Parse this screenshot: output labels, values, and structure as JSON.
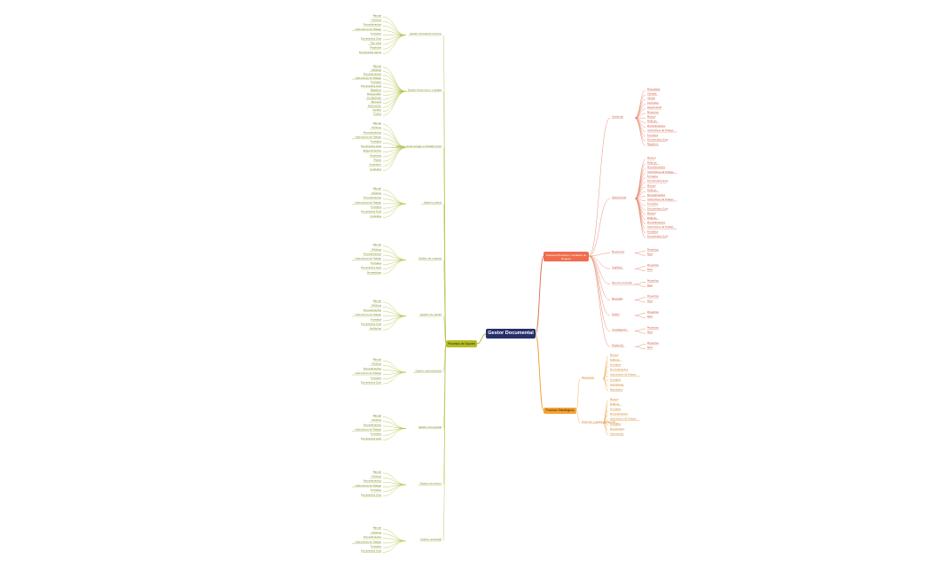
{
  "root": {
    "label": "Gestor Documental"
  },
  "branches": {
    "operativos": {
      "label": "Procesos de Soporte",
      "color": "#b4bc24",
      "subs": [
        {
          "label": "Gestión del talento humano",
          "items": [
            "Manual",
            "Políticas",
            "Procedimientos",
            "Instructivos de Trabajo",
            "Formatos",
            "Documentos Guía",
            "Tipo Lista",
            "Proyectos",
            "Documentos Varios"
          ]
        },
        {
          "label": "Gestión financiera y contable",
          "items": [
            "Manual",
            "Políticas",
            "Procedimientos",
            "Instructivos de Trabajo",
            "Formatos",
            "Documentos Guía",
            "Registros",
            "Presupuesto",
            "Contabilidad",
            "Tesorería",
            "Facturación",
            "Cartera",
            "Costos"
          ]
        },
        {
          "label": "Gestión de tecnología e infraestructura",
          "items": [
            "Manual",
            "Políticas",
            "Procedimientos",
            "Instructivos de Trabajo",
            "Formatos",
            "Documentos Guía",
            "Requerimientos",
            "Proyectos",
            "Planes",
            "Inventario",
            "Contratos"
          ]
        },
        {
          "label": "Gestión jurídica",
          "items": [
            "Manual",
            "Políticas",
            "Procedimientos",
            "Instructivos de Trabajo",
            "Formatos",
            "Documentos Guía",
            "Contratos"
          ]
        },
        {
          "label": "Gestión de compras",
          "items": [
            "Manual",
            "Políticas",
            "Procedimientos",
            "Instructivos de Trabajo",
            "Formatos",
            "Documentos Guía",
            "Proveedores"
          ]
        },
        {
          "label": "Gestión de calidad",
          "items": [
            "Manual",
            "Políticas",
            "Procedimientos",
            "Instructivos de Trabajo",
            "Formatos",
            "Documentos Guía",
            "Auditorías"
          ]
        },
        {
          "label": "Gestión administrativa",
          "items": [
            "Manual",
            "Políticas",
            "Procedimientos",
            "Instructivos de Trabajo",
            "Formatos",
            "Documentos Guía"
          ]
        },
        {
          "label": "Gestión documental",
          "items": [
            "Manual",
            "Políticas",
            "Procedimientos",
            "Instructivos de Trabajo",
            "Formatos",
            "Documentos Guía"
          ]
        },
        {
          "label": "Gestión de archivo",
          "items": [
            "Manual",
            "Políticas",
            "Procedimientos",
            "Instructivos de Trabajo",
            "Formatos",
            "Documentos Guía"
          ]
        },
        {
          "label": "Gestión ambiental",
          "items": [
            "Manual",
            "Políticas",
            "Procedimientos",
            "Instructivos de Trabajo",
            "Formatos",
            "Documentos Guía"
          ]
        }
      ]
    },
    "primarios": {
      "label": "Procesos Primarios / Unidades de Negocio",
      "color": "#ef6d4d",
      "subs": [
        {
          "label": "Comercial",
          "items": [
            "Propuestas",
            "Clientes",
            "Ventas",
            "Contratos",
            "Seguimiento",
            "Proyectos",
            "Manual",
            "Políticas",
            "Procedimientos",
            "Instructivos de Trabajo",
            "Formatos",
            "Documentos Guía",
            "Registros"
          ]
        },
        {
          "label": "Operaciones",
          "items": [
            "Manual",
            "Políticas",
            "Procedimientos",
            "Instructivos de Trabajo",
            "Formatos",
            "Documentos Guía",
            "Manual",
            "Políticas",
            "Procedimientos",
            "Instructivos de Trabajo",
            "Formatos",
            "Documentos Guía",
            "Manual",
            "Políticas",
            "Procedimientos",
            "Instructivos de Trabajo",
            "Formatos",
            "Documentos Guía"
          ]
        },
        {
          "label": "Producción",
          "items": [
            "Proyectos",
            "Ruta"
          ]
        },
        {
          "label": "Logística",
          "items": [
            "Proyectos",
            "Ruta"
          ]
        },
        {
          "label": "Servicio al cliente",
          "items": [
            "Proyectos",
            "Ruta"
          ]
        },
        {
          "label": "Mercadeo",
          "items": [
            "Proyectos",
            "Ruta"
          ]
        },
        {
          "label": "Diseño",
          "items": [
            "Proyectos",
            "Ruta"
          ]
        },
        {
          "label": "Investigación",
          "items": [
            "Proyectos",
            "Ruta"
          ]
        },
        {
          "label": "Desarrollo",
          "items": [
            "Proyectos",
            "Ruta"
          ]
        }
      ]
    },
    "estrategicos": {
      "label": "Procesos Estratégicos",
      "color": "#f5a233",
      "subs": [
        {
          "label": "Planeación",
          "items": [
            "Manual",
            "Políticas",
            "Formatos",
            "Procedimientos",
            "Instructivos de Trabajo",
            "Formatos",
            "Indicadores",
            "Resultados"
          ]
        },
        {
          "label": "Dirección y gestión gerencial",
          "items": [
            "Manual",
            "Políticas",
            "Formatos",
            "Procedimientos",
            "Instructivos de Trabajo",
            "Formatos",
            "Documentos",
            "Indicadores"
          ]
        }
      ]
    }
  }
}
